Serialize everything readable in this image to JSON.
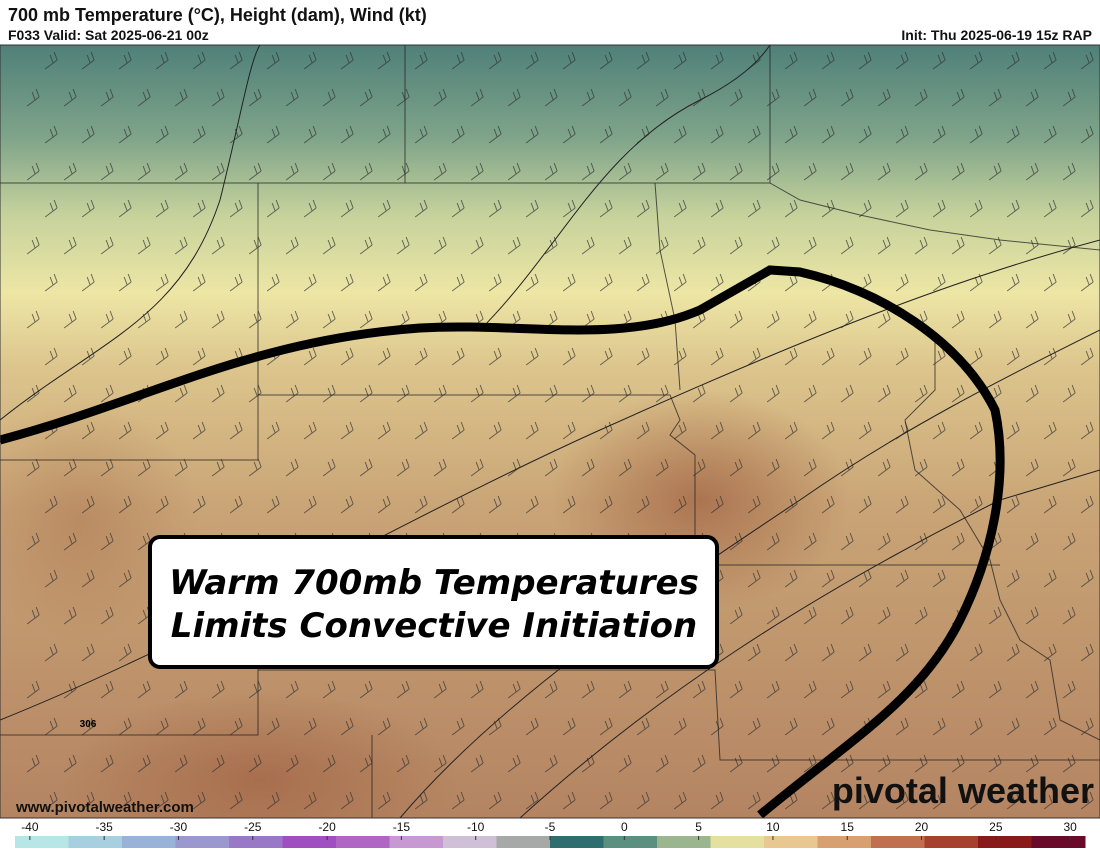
{
  "header": {
    "title": "700 mb Temperature (°C), Height (dam), Wind (kt)",
    "valid": "F033 Valid: Sat 2025-06-21 00z",
    "init": "Init: Thu 2025-06-19 15z RAP"
  },
  "map": {
    "annotation": [
      "Warm 700mb Temperatures",
      "Limits Convective Initiation"
    ],
    "contour_label": "306",
    "website": "www.pivotalweather.com",
    "logo": "pivotal weather"
  },
  "colorbar": {
    "lim": [
      -41,
      31
    ],
    "ticks": [
      -40,
      -35,
      -30,
      -25,
      -20,
      -15,
      -10,
      -5,
      0,
      5,
      10,
      15,
      20,
      25,
      30
    ],
    "colors": [
      "#b7e6e6",
      "#a6cfe0",
      "#99b2d8",
      "#9a98cf",
      "#9a78c8",
      "#a04fc0",
      "#b067c4",
      "#c798d2",
      "#cfc0d8",
      "#a7a8a8",
      "#2f6e6e",
      "#5b9080",
      "#9bb68e",
      "#e3e0a0",
      "#e8c890",
      "#d8a070",
      "#c07050",
      "#a84030",
      "#8a1a1a",
      "#6a0a2a"
    ]
  }
}
